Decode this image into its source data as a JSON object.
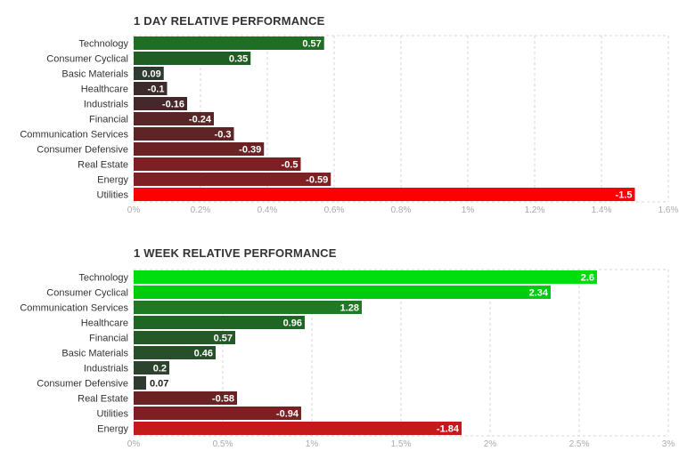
{
  "chart_data": [
    {
      "type": "bar",
      "title": "1 DAY RELATIVE PERFORMANCE",
      "orientation": "horizontal",
      "categories": [
        "Technology",
        "Consumer Cyclical",
        "Basic Materials",
        "Healthcare",
        "Industrials",
        "Financial",
        "Communication Services",
        "Consumer Defensive",
        "Real Estate",
        "Energy",
        "Utilities"
      ],
      "values": [
        0.57,
        0.35,
        0.09,
        -0.1,
        -0.16,
        -0.24,
        -0.3,
        -0.39,
        -0.5,
        -0.59,
        -1.5
      ],
      "value_labels": [
        "0.57",
        "0.35",
        "0.09",
        "-0.1",
        "-0.16",
        "-0.24",
        "-0.3",
        "-0.39",
        "-0.5",
        "-0.59",
        "-1.5"
      ],
      "bar_colors": [
        "#1e6e23",
        "#205f24",
        "#2f3b31",
        "#3d2b2b",
        "#47282a",
        "#5a2527",
        "#5e2426",
        "#6b2225",
        "#7d2024",
        "#7f2024",
        "#ff0000"
      ],
      "xaxis_ticks": [
        "0%",
        "0.2%",
        "0.4%",
        "0.6%",
        "0.8%",
        "1%",
        "1.2%",
        "1.4%",
        "1.6%"
      ],
      "xlim": [
        0,
        1.6
      ],
      "grid": true,
      "legend": false
    },
    {
      "type": "bar",
      "title": "1 WEEK RELATIVE PERFORMANCE",
      "orientation": "horizontal",
      "categories": [
        "Technology",
        "Consumer Cyclical",
        "Communication Services",
        "Healthcare",
        "Financial",
        "Basic Materials",
        "Industrials",
        "Consumer Defensive",
        "Real Estate",
        "Utilities",
        "Energy"
      ],
      "values": [
        2.6,
        2.34,
        1.28,
        0.96,
        0.57,
        0.46,
        0.2,
        0.07,
        -0.58,
        -0.94,
        -1.84
      ],
      "value_labels": [
        "2.6",
        "2.34",
        "1.28",
        "0.96",
        "0.57",
        "0.46",
        "0.2",
        "0.07",
        "-0.58",
        "-0.94",
        "-1.84"
      ],
      "bar_colors": [
        "#00dd0c",
        "#00cc0e",
        "#1f7a24",
        "#1f6624",
        "#235a26",
        "#27502a",
        "#2c432e",
        "#2f3b31",
        "#6b2225",
        "#7d1f23",
        "#c41a1a"
      ],
      "xaxis_ticks": [
        "0%",
        "0.5%",
        "1%",
        "1.5%",
        "2%",
        "2.5%",
        "3%"
      ],
      "xlim": [
        0,
        3
      ],
      "grid": true,
      "legend": false
    }
  ]
}
